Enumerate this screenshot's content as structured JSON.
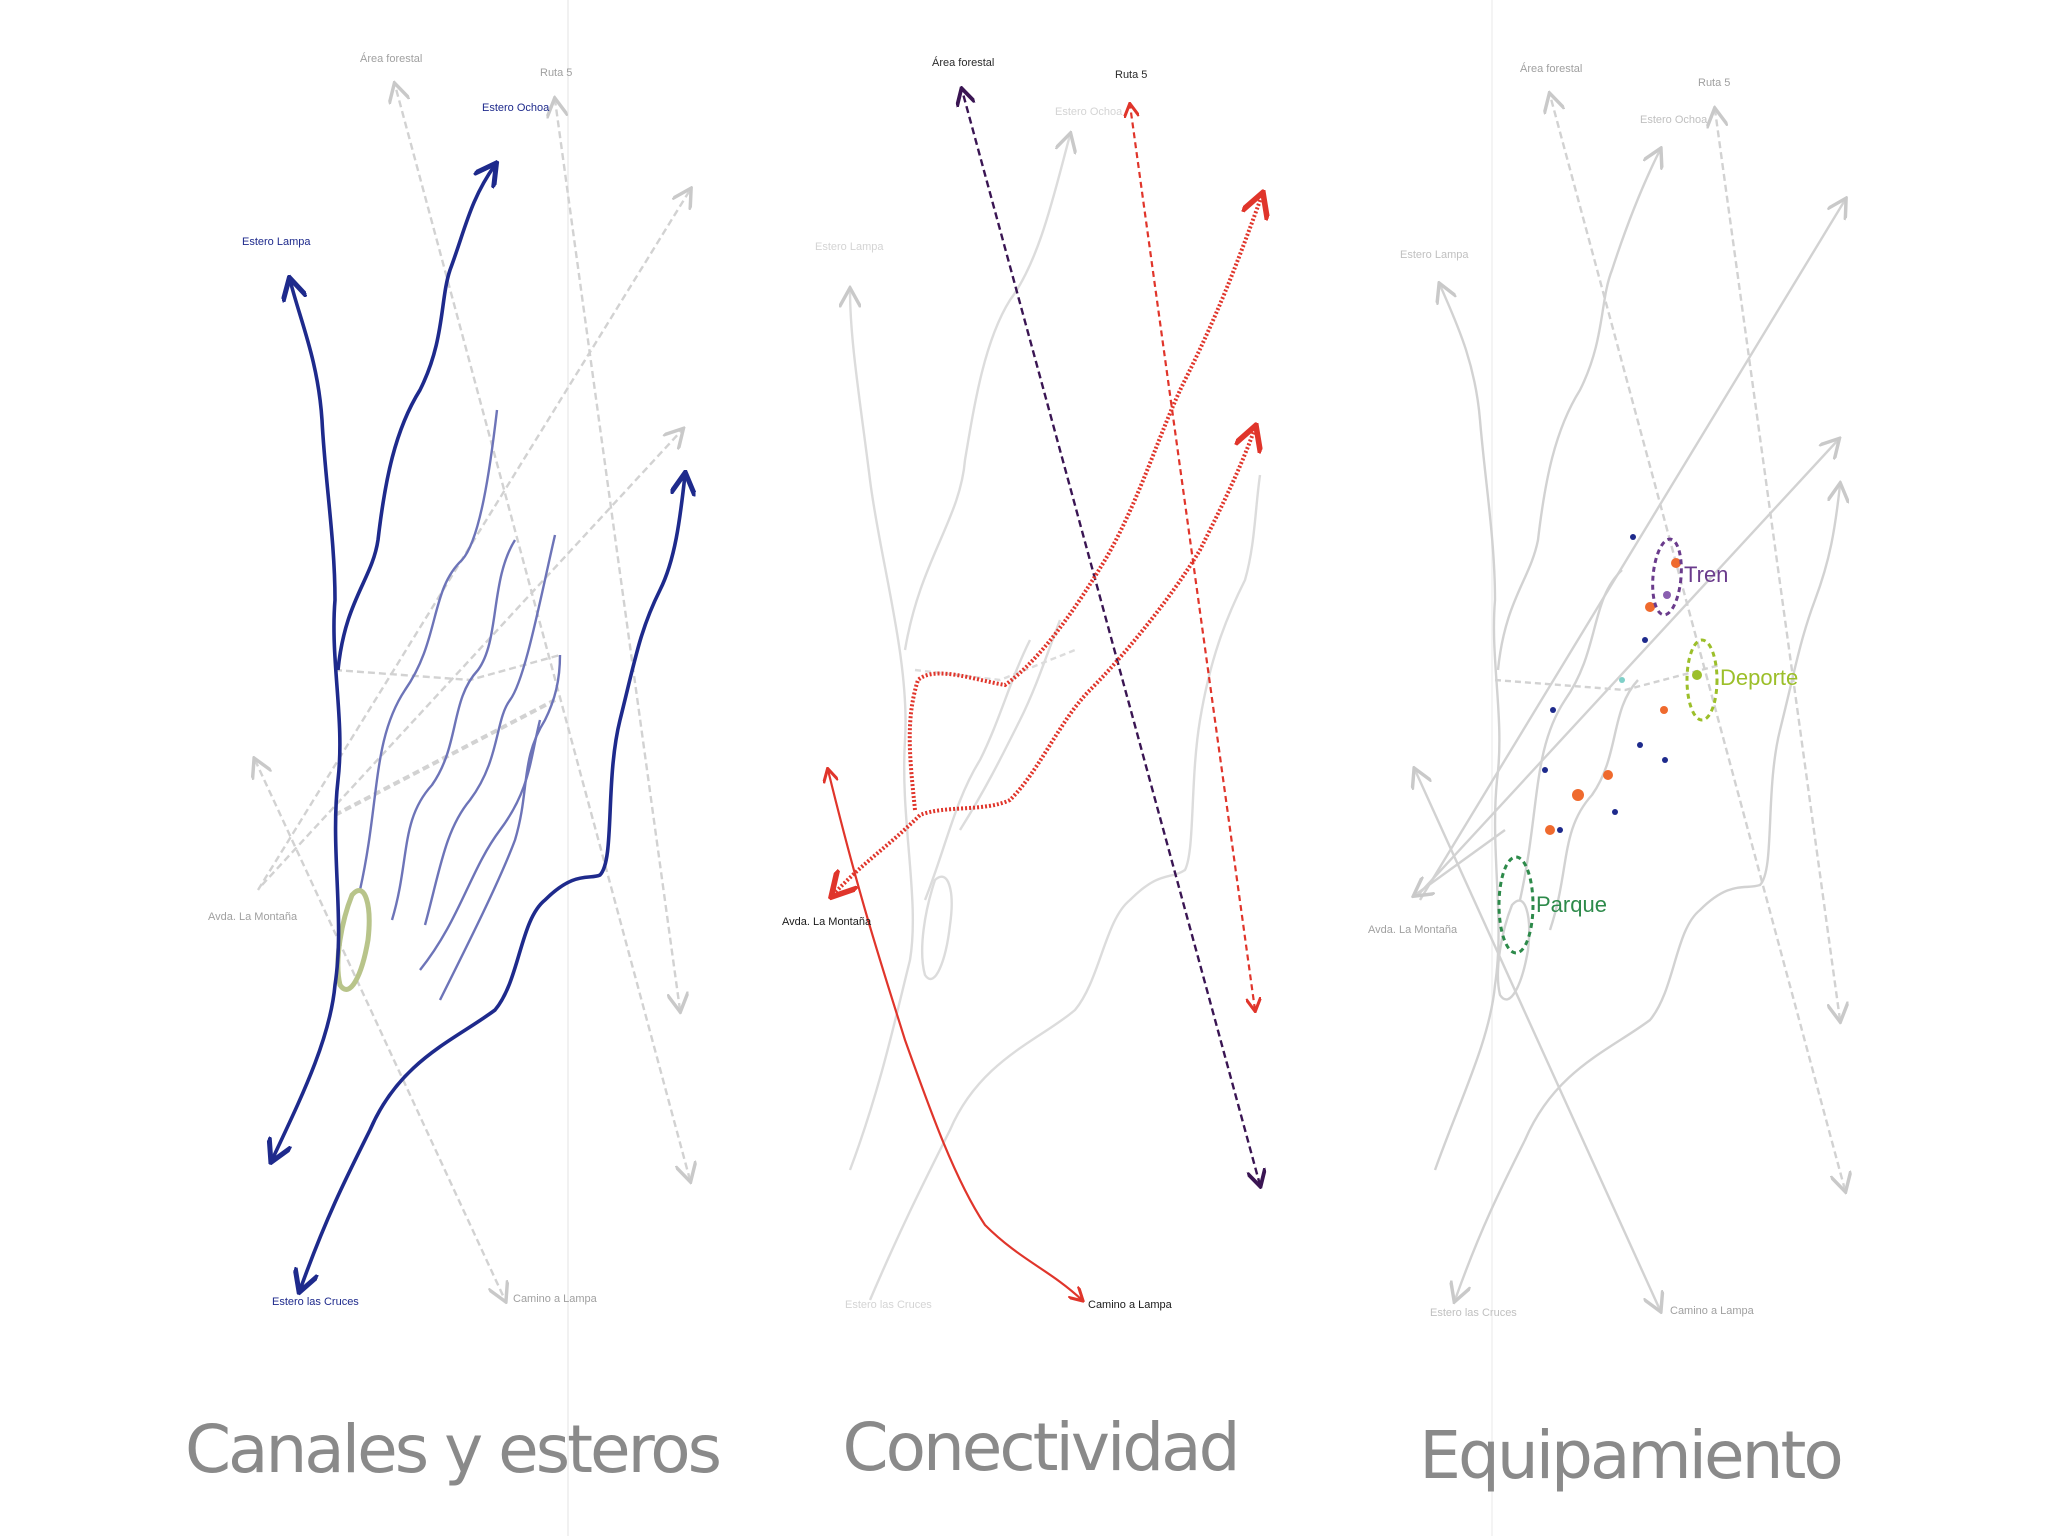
{
  "colors": {
    "grey": "#c9c9c9",
    "grey_text": "#a0a0a0",
    "navy": "#1e2a8c",
    "blue_light": "#6d74b8",
    "olive": "#b8c48a",
    "red": "#e0352b",
    "purple": "#3a1553",
    "orange": "#ef6a2e",
    "green_dark": "#2d8a4a",
    "lime": "#9cbf2a",
    "violet": "#6a3b8c"
  },
  "panels": [
    {
      "title": "Canales y esteros",
      "labels": {
        "top_left": "Área forestal",
        "top_mid": "Estero Ochoa",
        "top_right": "Ruta 5",
        "left_top": "Estero Lampa",
        "left_mid": "Avda. La Montaña",
        "bottom_left": "Estero las Cruces",
        "bottom_right": "Camino a Lampa"
      }
    },
    {
      "title": "Conectividad",
      "labels": {
        "top_left": "Área forestal",
        "top_right": "Ruta 5",
        "top_ghost": "Estero Ochoa",
        "left_ghost": "Estero Lampa",
        "left_mid": "Avda. La Montaña",
        "bottom_left": "Estero las Cruces",
        "bottom_right": "Camino a Lampa"
      }
    },
    {
      "title": "Equipamiento",
      "labels": {
        "top_left": "Área forestal",
        "top_mid": "Estero Ochoa",
        "top_right": "Ruta 5",
        "left_top": "Estero Lampa",
        "left_mid": "Avda. La Montaña",
        "bottom_left": "Estero las Cruces",
        "bottom_right": "Camino a Lampa",
        "tren": "Tren",
        "deporte": "Deporte",
        "parque": "Parque"
      }
    }
  ]
}
